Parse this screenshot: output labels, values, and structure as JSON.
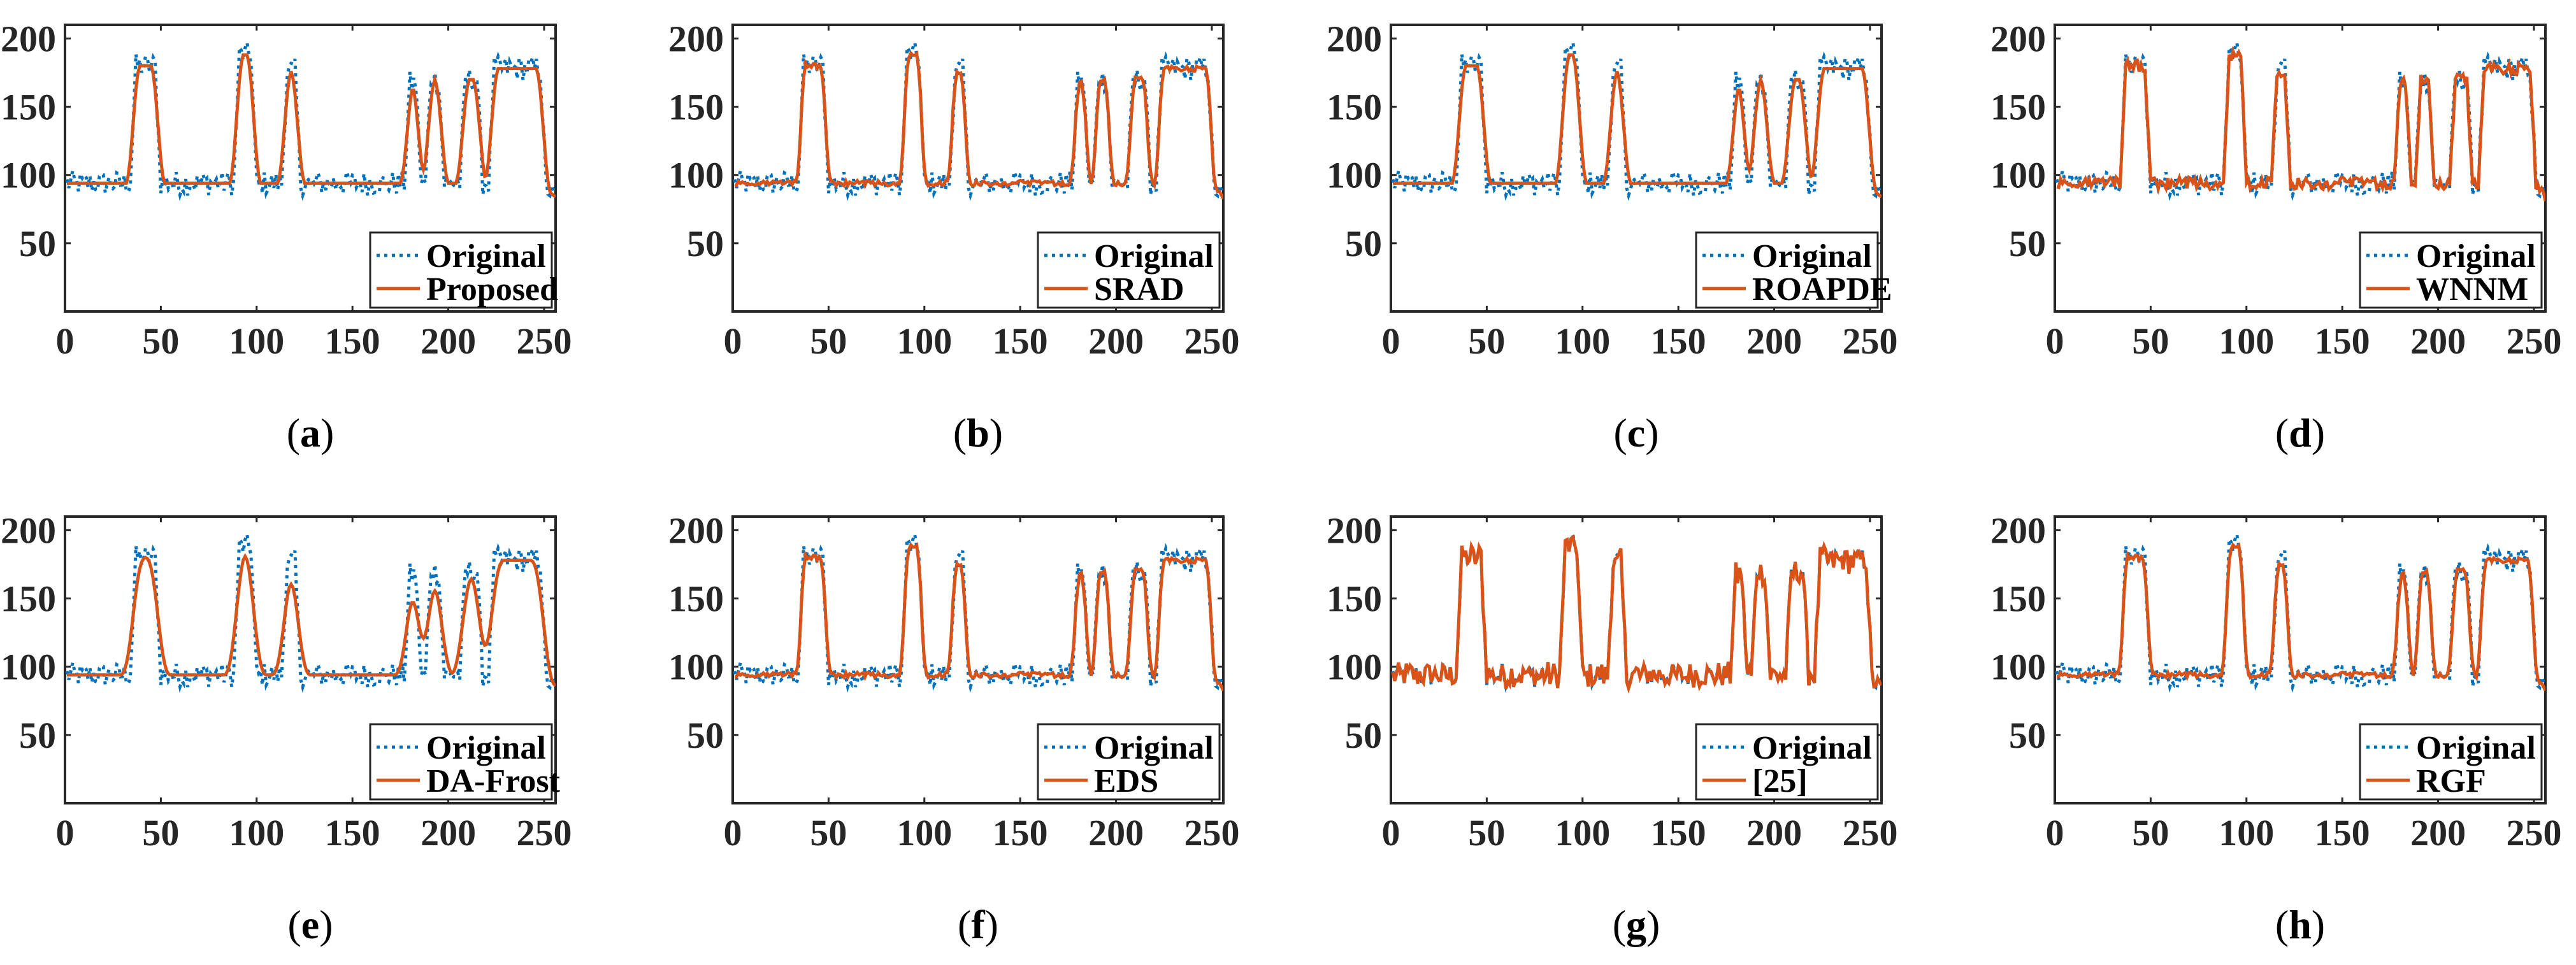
{
  "figure": {
    "layout": "2 rows x 4 columns",
    "colors": {
      "original": "#0072BD",
      "filtered": "#D95319",
      "axis": "#262626"
    }
  },
  "chart_data": [
    {
      "type": "line",
      "panel": "a",
      "caption": {
        "open": "(",
        "letter": "a",
        "close": ")"
      },
      "xlim": [
        0,
        256
      ],
      "ylim": [
        0,
        210
      ],
      "xticks": [
        "0",
        "50",
        "100",
        "150",
        "200",
        "250"
      ],
      "yticks": [
        "50",
        "100",
        "150",
        "200"
      ],
      "series": [
        {
          "name": "Original",
          "style": "dotted"
        },
        {
          "name": "Proposed",
          "style": "solid",
          "method": "smooth"
        }
      ]
    },
    {
      "type": "line",
      "panel": "b",
      "caption": {
        "open": "(",
        "letter": "b",
        "close": ")"
      },
      "xlim": [
        0,
        256
      ],
      "ylim": [
        0,
        210
      ],
      "xticks": [
        "0",
        "50",
        "100",
        "150",
        "200",
        "250"
      ],
      "yticks": [
        "50",
        "100",
        "150",
        "200"
      ],
      "series": [
        {
          "name": "Original",
          "style": "dotted"
        },
        {
          "name": "SRAD",
          "style": "solid",
          "method": "close"
        }
      ]
    },
    {
      "type": "line",
      "panel": "c",
      "caption": {
        "open": "(",
        "letter": "c",
        "close": ")"
      },
      "xlim": [
        0,
        256
      ],
      "ylim": [
        0,
        210
      ],
      "xticks": [
        "0",
        "50",
        "100",
        "150",
        "200",
        "250"
      ],
      "yticks": [
        "50",
        "100",
        "150",
        "200"
      ],
      "series": [
        {
          "name": "Original",
          "style": "dotted"
        },
        {
          "name": "ROAPDE",
          "style": "solid",
          "method": "smooth"
        }
      ]
    },
    {
      "type": "line",
      "panel": "d",
      "caption": {
        "open": "(",
        "letter": "d",
        "close": ")"
      },
      "xlim": [
        0,
        256
      ],
      "ylim": [
        0,
        210
      ],
      "xticks": [
        "0",
        "50",
        "100",
        "150",
        "200",
        "250"
      ],
      "yticks": [
        "50",
        "100",
        "150",
        "200"
      ],
      "series": [
        {
          "name": "Original",
          "style": "dotted"
        },
        {
          "name": "WNNM",
          "style": "solid",
          "method": "noisy"
        }
      ]
    },
    {
      "type": "line",
      "panel": "e",
      "caption": {
        "open": "(",
        "letter": "e",
        "close": ")"
      },
      "xlim": [
        0,
        256
      ],
      "ylim": [
        0,
        210
      ],
      "xticks": [
        "0",
        "50",
        "100",
        "150",
        "200",
        "250"
      ],
      "yticks": [
        "50",
        "100",
        "150",
        "200"
      ],
      "series": [
        {
          "name": "Original",
          "style": "dotted"
        },
        {
          "name": "DA-Frost",
          "style": "solid",
          "method": "blur"
        }
      ]
    },
    {
      "type": "line",
      "panel": "f",
      "caption": {
        "open": "(",
        "letter": "f",
        "close": ")"
      },
      "xlim": [
        0,
        256
      ],
      "ylim": [
        0,
        210
      ],
      "xticks": [
        "0",
        "50",
        "100",
        "150",
        "200",
        "250"
      ],
      "yticks": [
        "50",
        "100",
        "150",
        "200"
      ],
      "series": [
        {
          "name": "Original",
          "style": "dotted"
        },
        {
          "name": "EDS",
          "style": "solid",
          "method": "close"
        }
      ]
    },
    {
      "type": "line",
      "panel": "g",
      "caption": {
        "open": "(",
        "letter": "g",
        "close": ")"
      },
      "xlim": [
        0,
        256
      ],
      "ylim": [
        0,
        210
      ],
      "xticks": [
        "0",
        "50",
        "100",
        "150",
        "200",
        "250"
      ],
      "yticks": [
        "50",
        "100",
        "150",
        "200"
      ],
      "series": [
        {
          "name": "Original",
          "style": "dotted"
        },
        {
          "name": "[25]",
          "style": "solid",
          "method": "veryNoisy"
        }
      ]
    },
    {
      "type": "line",
      "panel": "h",
      "caption": {
        "open": "(",
        "letter": "h",
        "close": ")"
      },
      "xlim": [
        0,
        256
      ],
      "ylim": [
        0,
        210
      ],
      "xticks": [
        "0",
        "50",
        "100",
        "150",
        "200",
        "250"
      ],
      "yticks": [
        "50",
        "100",
        "150",
        "200"
      ],
      "series": [
        {
          "name": "Original",
          "style": "dotted"
        },
        {
          "name": "RGF",
          "style": "solid",
          "method": "close"
        }
      ]
    }
  ],
  "base_profile": {
    "x_range": [
      1,
      256
    ],
    "baseline": 94,
    "peaks": [
      {
        "start": 37,
        "end": 47,
        "height": 180
      },
      {
        "start": 91,
        "end": 97,
        "height": 188
      },
      {
        "start": 116,
        "end": 120,
        "height": 176
      },
      {
        "start": 180,
        "end": 183,
        "height": 167
      },
      {
        "start": 191,
        "end": 195,
        "height": 170
      },
      {
        "start": 209,
        "end": 215,
        "height": 170
      },
      {
        "start": 224,
        "end": 248,
        "height": 178
      }
    ],
    "end_value": 82
  }
}
